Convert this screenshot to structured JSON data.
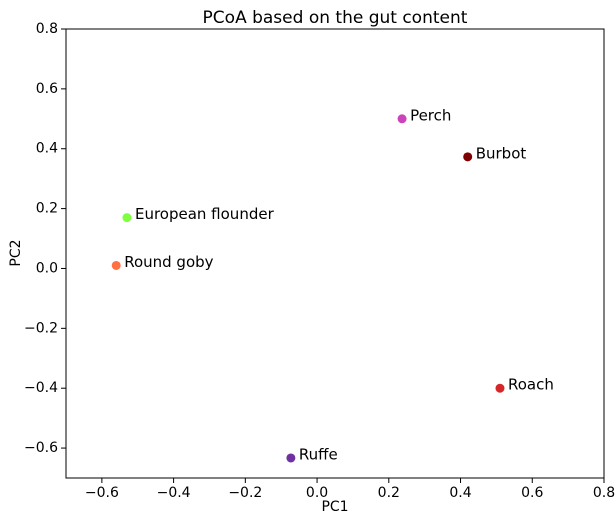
{
  "chart_data": {
    "type": "scatter",
    "title": "PCoA based on the gut content",
    "x_label": "PC1",
    "y_label": "PC2",
    "series": [
      {
        "name": "Perch",
        "color": "#cc44bb",
        "x": [
          0.237
        ],
        "values": [
          0.5
        ]
      },
      {
        "name": "Burbot",
        "color": "#7f0000",
        "x": [
          0.42
        ],
        "values": [
          0.373
        ]
      },
      {
        "name": "European flounder",
        "color": "#7fff3f",
        "x": [
          -0.53
        ],
        "values": [
          0.17
        ]
      },
      {
        "name": "Round goby",
        "color": "#ff7043",
        "x": [
          -0.56
        ],
        "values": [
          0.01
        ]
      },
      {
        "name": "Roach",
        "color": "#d62728",
        "x": [
          0.51
        ],
        "values": [
          -0.4
        ]
      },
      {
        "name": "Ruffe",
        "color": "#7030a0",
        "x": [
          -0.073
        ],
        "values": [
          -0.633
        ]
      }
    ],
    "xlim": [
      -0.7,
      0.8
    ],
    "xticks": [
      {
        "value": -0.6,
        "label": "−0.6"
      },
      {
        "value": -0.4,
        "label": "−0.4"
      },
      {
        "value": -0.2,
        "label": "−0.2"
      },
      {
        "value": 0,
        "label": "0.0"
      },
      0.2,
      0.4,
      0.6,
      0.8
    ],
    "ylim": [
      -0.7,
      0.8
    ],
    "yticks": [
      {
        "value": -0.6,
        "label": "−0.6"
      },
      {
        "value": -0.4,
        "label": "−0.4"
      },
      {
        "value": -0.2,
        "label": "−0.2"
      },
      {
        "value": 0,
        "label": "0.0"
      },
      0.2,
      0.4,
      0.6,
      0.8
    ],
    "grid": false
  }
}
